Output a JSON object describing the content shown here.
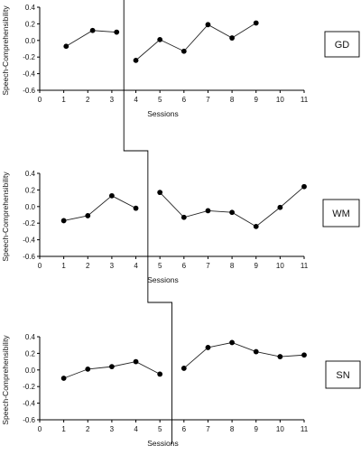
{
  "chart_data": [
    {
      "type": "line",
      "ylabel": "Speech-Comprehensibility",
      "xlabel": "Sessions",
      "panel_label": "GD",
      "xlim": [
        0,
        11
      ],
      "ylim": [
        -0.6,
        0.4
      ],
      "xticks": [
        "0",
        "1",
        "2",
        "3",
        "4",
        "5",
        "6",
        "7",
        "8",
        "9",
        "10",
        "11"
      ],
      "yticks": [
        "0.4",
        "0.2",
        "0.0",
        "-0.2",
        "-0.4",
        "-0.6"
      ],
      "phase_change_after": 3.5,
      "series": [
        {
          "x": [
            1.1,
            2.2,
            3.2
          ],
          "y": [
            -0.07,
            0.12,
            0.1
          ]
        },
        {
          "x": [
            4,
            5,
            6,
            7,
            8,
            9
          ],
          "y": [
            -0.24,
            0.01,
            -0.13,
            0.19,
            0.03,
            0.21
          ]
        }
      ]
    },
    {
      "type": "line",
      "ylabel": "Speech-Comprehensibility",
      "xlabel": "Sessions",
      "panel_label": "WM",
      "xlim": [
        0,
        11
      ],
      "ylim": [
        -0.6,
        0.4
      ],
      "xticks": [
        "0",
        "1",
        "2",
        "3",
        "4",
        "5",
        "6",
        "7",
        "8",
        "9",
        "10",
        "11"
      ],
      "yticks": [
        "0.4",
        "0.2",
        "0.0",
        "-0.2",
        "-0.4",
        "-0.6"
      ],
      "phase_change_after": 4.5,
      "series": [
        {
          "x": [
            1,
            2,
            3,
            4
          ],
          "y": [
            -0.17,
            -0.11,
            0.13,
            -0.02
          ]
        },
        {
          "x": [
            5,
            6,
            7,
            8,
            9,
            10,
            11
          ],
          "y": [
            0.17,
            -0.13,
            -0.05,
            -0.07,
            -0.24,
            -0.01,
            0.24
          ]
        }
      ]
    },
    {
      "type": "line",
      "ylabel": "Speech-Comprehensibility",
      "xlabel": "Sessions",
      "panel_label": "SN",
      "xlim": [
        0,
        11
      ],
      "ylim": [
        -0.6,
        0.4
      ],
      "xticks": [
        "0",
        "1",
        "2",
        "3",
        "4",
        "5",
        "6",
        "7",
        "8",
        "9",
        "10",
        "11"
      ],
      "yticks": [
        "0.4",
        "0.2",
        "0.0",
        "-0.2",
        "-0.4",
        "-0.6"
      ],
      "phase_change_after": 5.5,
      "series": [
        {
          "x": [
            1,
            2,
            3,
            4,
            5
          ],
          "y": [
            -0.1,
            0.01,
            0.04,
            0.1,
            -0.05
          ]
        },
        {
          "x": [
            6,
            7,
            8,
            9,
            10,
            11
          ],
          "y": [
            0.02,
            0.27,
            0.33,
            0.22,
            0.16,
            0.18
          ]
        }
      ]
    }
  ],
  "colors": {
    "line": "#222222",
    "marker": "#000000",
    "axis": "#000000"
  }
}
